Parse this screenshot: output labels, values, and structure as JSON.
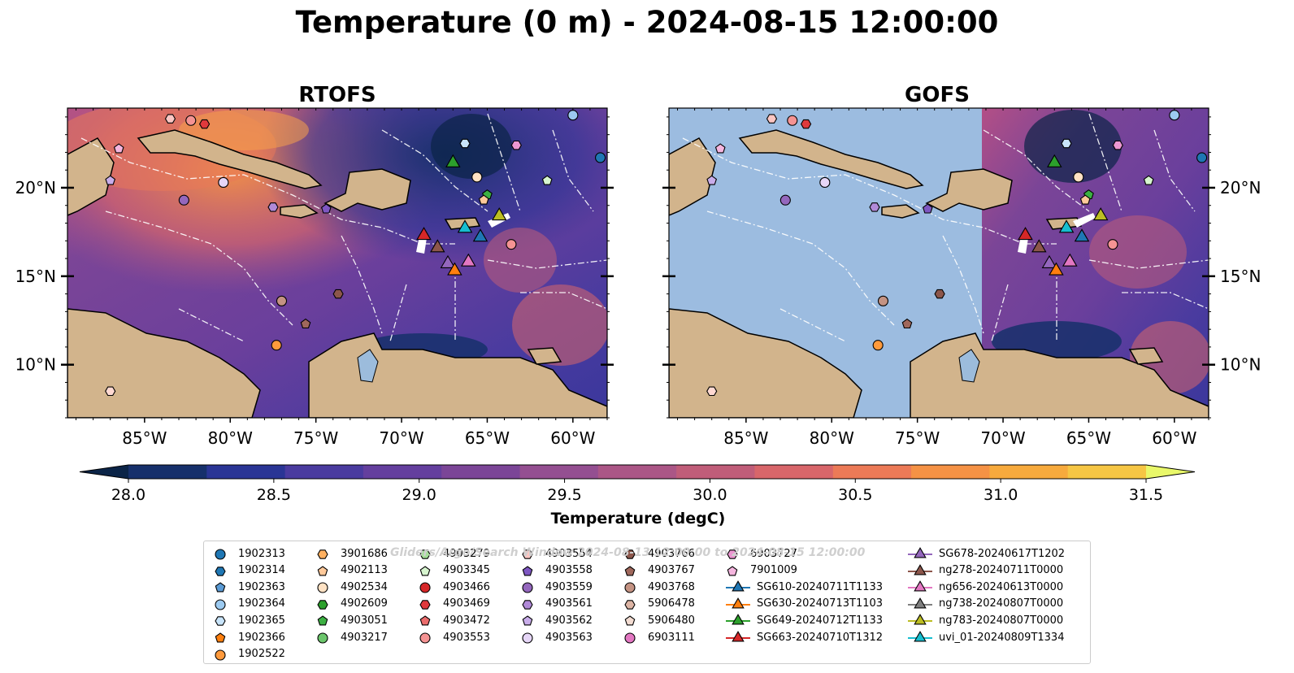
{
  "figure": {
    "title": "Temperature (0 m) - 2024-08-15 12:00:00",
    "watermark": "Gliders/Argo/Search Window 2024-08-13 12:00:00 to 2024-08-15 12:00:00"
  },
  "chart_data": [
    {
      "type": "heatmap",
      "title": "RTOFS",
      "xlabel": "",
      "ylabel": "",
      "x_ticks": [
        "85°W",
        "80°W",
        "75°W",
        "70°W",
        "65°W",
        "60°W"
      ],
      "y_ticks": [
        "20°N",
        "15°N",
        "10°N"
      ],
      "xlim": [
        -89.5,
        -58.0
      ],
      "ylim": [
        7.0,
        24.5
      ],
      "grid": false
    },
    {
      "type": "heatmap",
      "title": "GOFS",
      "xlabel": "",
      "ylabel": "",
      "x_ticks": [
        "85°W",
        "80°W",
        "75°W",
        "70°W",
        "65°W",
        "60°W"
      ],
      "y_ticks": [
        "20°N",
        "15°N",
        "10°N"
      ],
      "xlim": [
        -89.5,
        -58.0
      ],
      "ylim": [
        7.0,
        24.5
      ],
      "grid": false
    }
  ],
  "colorbar": {
    "label": "Temperature (degC)",
    "ticks": [
      "28.0",
      "28.5",
      "29.0",
      "29.5",
      "30.0",
      "30.5",
      "31.0",
      "31.5"
    ],
    "range": [
      28.0,
      31.5
    ],
    "extend": "both",
    "colors": [
      "#0b2447",
      "#16306b",
      "#2a3595",
      "#4a3b9f",
      "#643f9e",
      "#7b4597",
      "#944f91",
      "#ab5686",
      "#c05d79",
      "#d8666a",
      "#ec7a57",
      "#f59245",
      "#f7aa3d",
      "#f6c644",
      "#e9f86a"
    ]
  },
  "legend": {
    "items": [
      {
        "label": "1902313",
        "marker": "circle",
        "color": "#1f77b4"
      },
      {
        "label": "1902314",
        "marker": "hexagon",
        "color": "#1f77b4"
      },
      {
        "label": "1902363",
        "marker": "pentagon",
        "color": "#5b9bd5"
      },
      {
        "label": "1902364",
        "marker": "circle",
        "color": "#9ccaf0"
      },
      {
        "label": "1902365",
        "marker": "hexagon",
        "color": "#c8e4fa"
      },
      {
        "label": "1902366",
        "marker": "pentagon",
        "color": "#ff7f0e"
      },
      {
        "label": "1902522",
        "marker": "circle",
        "color": "#ff9a3c"
      },
      {
        "label": "3901686",
        "marker": "hexagon",
        "color": "#ffb060"
      },
      {
        "label": "4902113",
        "marker": "pentagon",
        "color": "#ffc99a"
      },
      {
        "label": "4902534",
        "marker": "circle",
        "color": "#ffe2c4"
      },
      {
        "label": "4902609",
        "marker": "hexagon",
        "color": "#2ca02c"
      },
      {
        "label": "4903051",
        "marker": "pentagon",
        "color": "#3cb043"
      },
      {
        "label": "4903217",
        "marker": "circle",
        "color": "#6cc66c"
      },
      {
        "label": "4903279",
        "marker": "hexagon",
        "color": "#a4de98"
      },
      {
        "label": "4903345",
        "marker": "pentagon",
        "color": "#d7f5cf"
      },
      {
        "label": "4903466",
        "marker": "circle",
        "color": "#d62728"
      },
      {
        "label": "4903469",
        "marker": "hexagon",
        "color": "#e0393c"
      },
      {
        "label": "4903472",
        "marker": "pentagon",
        "color": "#eb6c6c"
      },
      {
        "label": "4903553",
        "marker": "circle",
        "color": "#f59393"
      },
      {
        "label": "4903554",
        "marker": "hexagon",
        "color": "#fbc6c3"
      },
      {
        "label": "4903558",
        "marker": "pentagon",
        "color": "#7e57c2"
      },
      {
        "label": "4903559",
        "marker": "circle",
        "color": "#9467bd"
      },
      {
        "label": "4903561",
        "marker": "hexagon",
        "color": "#b18ad8"
      },
      {
        "label": "4903562",
        "marker": "pentagon",
        "color": "#c9adea"
      },
      {
        "label": "4903563",
        "marker": "circle",
        "color": "#e6d6f7"
      },
      {
        "label": "4903766",
        "marker": "hexagon",
        "color": "#8c564b"
      },
      {
        "label": "4903767",
        "marker": "pentagon",
        "color": "#a0685c"
      },
      {
        "label": "4903768",
        "marker": "circle",
        "color": "#c49383"
      },
      {
        "label": "5906478",
        "marker": "hexagon",
        "color": "#ddb5a5"
      },
      {
        "label": "5906480",
        "marker": "pentagon",
        "color": "#f3dcd2"
      },
      {
        "label": "6903111",
        "marker": "circle",
        "color": "#e377c2"
      },
      {
        "label": "6903727",
        "marker": "hexagon",
        "color": "#ec97d2"
      },
      {
        "label": "7901009",
        "marker": "pentagon",
        "color": "#f5b6df"
      },
      {
        "label": "SG610-20240711T1133",
        "marker": "triangle",
        "color": "#1f77b4"
      },
      {
        "label": "SG630-20240713T1103",
        "marker": "triangle",
        "color": "#ff7f0e"
      },
      {
        "label": "SG649-20240712T1133",
        "marker": "triangle",
        "color": "#2ca02c"
      },
      {
        "label": "SG663-20240710T1312",
        "marker": "triangle",
        "color": "#d62728"
      },
      {
        "label": "SG678-20240617T1202",
        "marker": "triangle",
        "color": "#9467bd"
      },
      {
        "label": "ng278-20240711T0000",
        "marker": "triangle",
        "color": "#8c564b"
      },
      {
        "label": "ng656-20240613T0000",
        "marker": "triangle",
        "color": "#e377c2"
      },
      {
        "label": "ng738-20240807T0000",
        "marker": "triangle",
        "color": "#7f7f7f"
      },
      {
        "label": "ng783-20240807T0000",
        "marker": "triangle",
        "color": "#bcbd22"
      },
      {
        "label": "uvi_01-20240809T1334",
        "marker": "triangle",
        "color": "#17becf"
      }
    ]
  },
  "markers_on_map": [
    {
      "lon": -83.5,
      "lat": 23.9,
      "color": "#fbc6c3",
      "marker": "hexagon"
    },
    {
      "lon": -82.3,
      "lat": 23.8,
      "color": "#f59393",
      "marker": "circle"
    },
    {
      "lon": -81.5,
      "lat": 23.6,
      "color": "#e0393c",
      "marker": "hexagon"
    },
    {
      "lon": -86.5,
      "lat": 22.2,
      "color": "#f5b6df",
      "marker": "pentagon"
    },
    {
      "lon": -87.0,
      "lat": 20.4,
      "color": "#c9adea",
      "marker": "pentagon"
    },
    {
      "lon": -80.4,
      "lat": 20.3,
      "color": "#e6d6f7",
      "marker": "circle"
    },
    {
      "lon": -82.7,
      "lat": 19.3,
      "color": "#9467bd",
      "marker": "circle"
    },
    {
      "lon": -77.5,
      "lat": 18.9,
      "color": "#b18ad8",
      "marker": "hexagon"
    },
    {
      "lon": -74.4,
      "lat": 18.8,
      "color": "#7e57c2",
      "marker": "pentagon"
    },
    {
      "lon": -77.0,
      "lat": 13.6,
      "color": "#c49383",
      "marker": "circle"
    },
    {
      "lon": -73.7,
      "lat": 14.0,
      "color": "#8c564b",
      "marker": "hexagon"
    },
    {
      "lon": -75.6,
      "lat": 12.3,
      "color": "#a0685c",
      "marker": "pentagon"
    },
    {
      "lon": -77.3,
      "lat": 11.1,
      "color": "#ff9a3c",
      "marker": "circle"
    },
    {
      "lon": -87.0,
      "lat": 8.5,
      "color": "#ffd9d2",
      "marker": "hexagon"
    },
    {
      "lon": -66.3,
      "lat": 22.5,
      "color": "#c8e4fa",
      "marker": "hexagon"
    },
    {
      "lon": -65.6,
      "lat": 20.6,
      "color": "#ffe2c4",
      "marker": "circle"
    },
    {
      "lon": -65.0,
      "lat": 19.6,
      "color": "#3cb043",
      "marker": "pentagon"
    },
    {
      "lon": -65.2,
      "lat": 19.3,
      "color": "#ffc99a",
      "marker": "pentagon"
    },
    {
      "lon": -61.5,
      "lat": 20.4,
      "color": "#d7f5cf",
      "marker": "pentagon"
    },
    {
      "lon": -63.6,
      "lat": 16.8,
      "color": "#f59393",
      "marker": "circle"
    },
    {
      "lon": -60.0,
      "lat": 24.1,
      "color": "#9ccaf0",
      "marker": "circle"
    },
    {
      "lon": -58.4,
      "lat": 21.7,
      "color": "#1f77b4",
      "marker": "circle"
    },
    {
      "lon": -63.3,
      "lat": 22.4,
      "color": "#ec97d2",
      "marker": "hexagon"
    },
    {
      "lon": -67.0,
      "lat": 21.4,
      "color": "#2ca02c",
      "marker": "triangle"
    },
    {
      "lon": -64.3,
      "lat": 18.4,
      "color": "#bcbd22",
      "marker": "triangle"
    },
    {
      "lon": -68.7,
      "lat": 17.3,
      "color": "#d62728",
      "marker": "triangle"
    },
    {
      "lon": -67.9,
      "lat": 16.6,
      "color": "#8c564b",
      "marker": "triangle"
    },
    {
      "lon": -66.3,
      "lat": 17.7,
      "color": "#17becf",
      "marker": "triangle"
    },
    {
      "lon": -65.4,
      "lat": 17.2,
      "color": "#1f77b4",
      "marker": "triangle"
    },
    {
      "lon": -67.3,
      "lat": 15.7,
      "color": "#9467bd",
      "marker": "triangle"
    },
    {
      "lon": -66.1,
      "lat": 15.8,
      "color": "#e377c2",
      "marker": "triangle"
    },
    {
      "lon": -66.9,
      "lat": 15.3,
      "color": "#ff7f0e",
      "marker": "triangle"
    }
  ]
}
